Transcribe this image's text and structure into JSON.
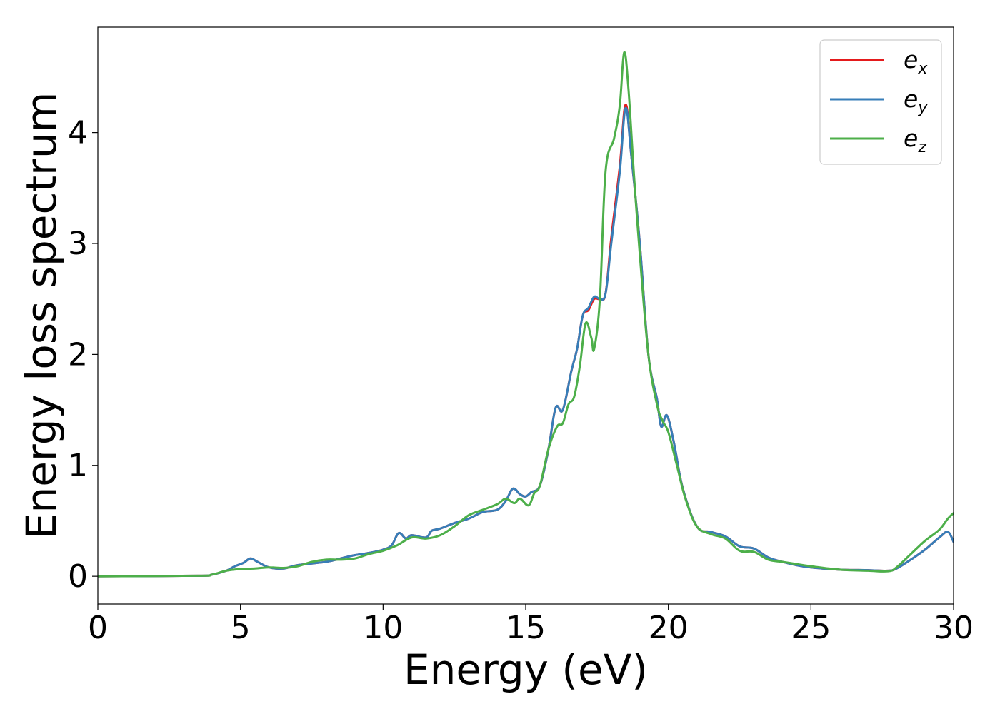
{
  "chart_data": {
    "type": "line",
    "title": "",
    "xlabel": "Energy (eV)",
    "ylabel": "Energy loss spectrum",
    "xlim": [
      0,
      30
    ],
    "ylim": [
      -0.25,
      4.95
    ],
    "xticks": [
      0,
      5,
      10,
      15,
      20,
      25,
      30
    ],
    "xtick_labels": [
      "0",
      "5",
      "10",
      "15",
      "20",
      "25",
      "30"
    ],
    "yticks": [
      0,
      1,
      2,
      3,
      4
    ],
    "ytick_labels": [
      "0",
      "1",
      "2",
      "3",
      "4"
    ],
    "grid": false,
    "legend_position": "top-right",
    "series": [
      {
        "name": "ex",
        "legend_base": "e",
        "legend_sub": "x",
        "color": "#e41a1c",
        "points": [
          [
            0,
            0
          ],
          [
            3.5,
            0.005
          ],
          [
            4,
            0.015
          ],
          [
            4.5,
            0.05
          ],
          [
            4.8,
            0.09
          ],
          [
            5.1,
            0.12
          ],
          [
            5.35,
            0.16
          ],
          [
            5.6,
            0.13
          ],
          [
            6,
            0.08
          ],
          [
            6.5,
            0.07
          ],
          [
            7,
            0.1
          ],
          [
            8,
            0.13
          ],
          [
            8.5,
            0.16
          ],
          [
            9,
            0.19
          ],
          [
            9.5,
            0.21
          ],
          [
            10,
            0.24
          ],
          [
            10.3,
            0.28
          ],
          [
            10.55,
            0.39
          ],
          [
            10.8,
            0.34
          ],
          [
            11,
            0.37
          ],
          [
            11.5,
            0.35
          ],
          [
            11.7,
            0.41
          ],
          [
            12,
            0.43
          ],
          [
            12.5,
            0.48
          ],
          [
            13,
            0.52
          ],
          [
            13.5,
            0.58
          ],
          [
            14,
            0.6
          ],
          [
            14.3,
            0.68
          ],
          [
            14.55,
            0.79
          ],
          [
            14.8,
            0.74
          ],
          [
            15,
            0.72
          ],
          [
            15.2,
            0.76
          ],
          [
            15.5,
            0.82
          ],
          [
            15.8,
            1.15
          ],
          [
            16.05,
            1.52
          ],
          [
            16.3,
            1.5
          ],
          [
            16.6,
            1.85
          ],
          [
            16.8,
            2.05
          ],
          [
            17,
            2.35
          ],
          [
            17.2,
            2.4
          ],
          [
            17.4,
            2.5
          ],
          [
            17.6,
            2.5
          ],
          [
            17.8,
            2.55
          ],
          [
            18,
            3.05
          ],
          [
            18.3,
            3.7
          ],
          [
            18.5,
            4.25
          ],
          [
            18.7,
            3.8
          ],
          [
            19,
            3.0
          ],
          [
            19.3,
            2.0
          ],
          [
            19.6,
            1.6
          ],
          [
            19.75,
            1.35
          ],
          [
            19.95,
            1.45
          ],
          [
            20.2,
            1.2
          ],
          [
            20.5,
            0.8
          ],
          [
            21,
            0.45
          ],
          [
            21.5,
            0.4
          ],
          [
            22,
            0.36
          ],
          [
            22.5,
            0.27
          ],
          [
            23,
            0.25
          ],
          [
            23.5,
            0.17
          ],
          [
            24,
            0.13
          ],
          [
            24.5,
            0.1
          ],
          [
            25,
            0.08
          ],
          [
            26,
            0.06
          ],
          [
            27,
            0.055
          ],
          [
            27.7,
            0.05
          ],
          [
            28,
            0.07
          ],
          [
            28.5,
            0.15
          ],
          [
            29,
            0.24
          ],
          [
            29.5,
            0.35
          ],
          [
            29.8,
            0.4
          ],
          [
            30,
            0.31
          ]
        ]
      },
      {
        "name": "ey",
        "legend_base": "e",
        "legend_sub": "y",
        "color": "#377eb8",
        "points": [
          [
            0,
            0
          ],
          [
            3.5,
            0.005
          ],
          [
            4,
            0.015
          ],
          [
            4.5,
            0.05
          ],
          [
            4.8,
            0.09
          ],
          [
            5.1,
            0.12
          ],
          [
            5.35,
            0.16
          ],
          [
            5.6,
            0.13
          ],
          [
            6,
            0.08
          ],
          [
            6.5,
            0.07
          ],
          [
            7,
            0.1
          ],
          [
            8,
            0.13
          ],
          [
            8.5,
            0.16
          ],
          [
            9,
            0.19
          ],
          [
            9.5,
            0.21
          ],
          [
            10,
            0.24
          ],
          [
            10.3,
            0.28
          ],
          [
            10.55,
            0.39
          ],
          [
            10.8,
            0.34
          ],
          [
            11,
            0.37
          ],
          [
            11.5,
            0.35
          ],
          [
            11.7,
            0.41
          ],
          [
            12,
            0.43
          ],
          [
            12.5,
            0.48
          ],
          [
            13,
            0.52
          ],
          [
            13.5,
            0.58
          ],
          [
            14,
            0.6
          ],
          [
            14.3,
            0.68
          ],
          [
            14.55,
            0.79
          ],
          [
            14.8,
            0.74
          ],
          [
            15,
            0.72
          ],
          [
            15.2,
            0.76
          ],
          [
            15.5,
            0.82
          ],
          [
            15.8,
            1.15
          ],
          [
            16.05,
            1.52
          ],
          [
            16.3,
            1.5
          ],
          [
            16.6,
            1.85
          ],
          [
            16.8,
            2.05
          ],
          [
            17,
            2.35
          ],
          [
            17.2,
            2.42
          ],
          [
            17.4,
            2.52
          ],
          [
            17.6,
            2.5
          ],
          [
            17.8,
            2.55
          ],
          [
            18,
            3.0
          ],
          [
            18.3,
            3.65
          ],
          [
            18.5,
            4.22
          ],
          [
            18.7,
            3.8
          ],
          [
            19,
            3.0
          ],
          [
            19.3,
            2.0
          ],
          [
            19.6,
            1.6
          ],
          [
            19.75,
            1.35
          ],
          [
            19.95,
            1.45
          ],
          [
            20.2,
            1.2
          ],
          [
            20.5,
            0.8
          ],
          [
            21,
            0.45
          ],
          [
            21.5,
            0.4
          ],
          [
            22,
            0.36
          ],
          [
            22.5,
            0.27
          ],
          [
            23,
            0.25
          ],
          [
            23.5,
            0.17
          ],
          [
            24,
            0.13
          ],
          [
            24.5,
            0.1
          ],
          [
            25,
            0.08
          ],
          [
            26,
            0.06
          ],
          [
            27,
            0.055
          ],
          [
            27.7,
            0.05
          ],
          [
            28,
            0.07
          ],
          [
            28.5,
            0.15
          ],
          [
            29,
            0.24
          ],
          [
            29.5,
            0.35
          ],
          [
            29.8,
            0.4
          ],
          [
            30,
            0.31
          ]
        ]
      },
      {
        "name": "ez",
        "legend_base": "e",
        "legend_sub": "z",
        "color": "#4daf4a",
        "points": [
          [
            0,
            0
          ],
          [
            3.5,
            0.005
          ],
          [
            4,
            0.015
          ],
          [
            4.5,
            0.05
          ],
          [
            5,
            0.065
          ],
          [
            5.5,
            0.07
          ],
          [
            6,
            0.08
          ],
          [
            6.5,
            0.075
          ],
          [
            7,
            0.09
          ],
          [
            7.5,
            0.13
          ],
          [
            8,
            0.15
          ],
          [
            8.5,
            0.15
          ],
          [
            9,
            0.16
          ],
          [
            9.5,
            0.2
          ],
          [
            10,
            0.23
          ],
          [
            10.5,
            0.28
          ],
          [
            11,
            0.35
          ],
          [
            11.5,
            0.34
          ],
          [
            12,
            0.37
          ],
          [
            12.5,
            0.45
          ],
          [
            13,
            0.55
          ],
          [
            13.5,
            0.6
          ],
          [
            14,
            0.65
          ],
          [
            14.3,
            0.7
          ],
          [
            14.6,
            0.66
          ],
          [
            14.8,
            0.7
          ],
          [
            15.1,
            0.64
          ],
          [
            15.3,
            0.75
          ],
          [
            15.5,
            0.82
          ],
          [
            15.8,
            1.15
          ],
          [
            16.1,
            1.35
          ],
          [
            16.3,
            1.38
          ],
          [
            16.5,
            1.55
          ],
          [
            16.7,
            1.62
          ],
          [
            16.9,
            1.9
          ],
          [
            17.1,
            2.28
          ],
          [
            17.3,
            2.15
          ],
          [
            17.4,
            2.05
          ],
          [
            17.6,
            2.5
          ],
          [
            17.8,
            3.65
          ],
          [
            18.1,
            3.95
          ],
          [
            18.3,
            4.25
          ],
          [
            18.45,
            4.72
          ],
          [
            18.6,
            4.4
          ],
          [
            18.8,
            3.6
          ],
          [
            19,
            2.9
          ],
          [
            19.3,
            2.0
          ],
          [
            19.6,
            1.55
          ],
          [
            19.8,
            1.4
          ],
          [
            20,
            1.3
          ],
          [
            20.3,
            1.0
          ],
          [
            20.6,
            0.7
          ],
          [
            21,
            0.45
          ],
          [
            21.5,
            0.38
          ],
          [
            22,
            0.34
          ],
          [
            22.5,
            0.23
          ],
          [
            23,
            0.22
          ],
          [
            23.5,
            0.15
          ],
          [
            24,
            0.13
          ],
          [
            24.5,
            0.11
          ],
          [
            25,
            0.09
          ],
          [
            26,
            0.06
          ],
          [
            27,
            0.05
          ],
          [
            27.7,
            0.045
          ],
          [
            28,
            0.08
          ],
          [
            28.5,
            0.2
          ],
          [
            29,
            0.32
          ],
          [
            29.5,
            0.42
          ],
          [
            29.8,
            0.52
          ],
          [
            30,
            0.57
          ]
        ]
      }
    ]
  }
}
